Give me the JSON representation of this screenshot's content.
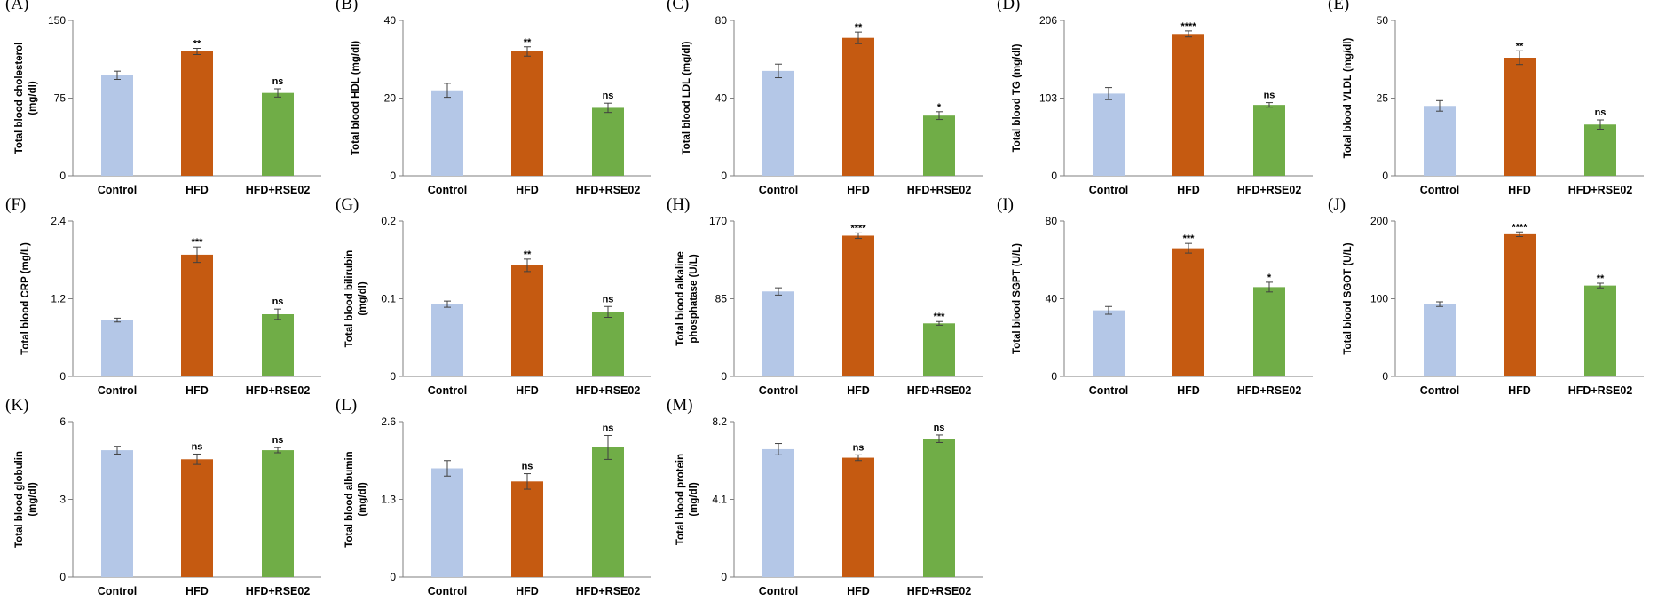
{
  "colors": {
    "control": "#b4c7e7",
    "hfd": "#c55a11",
    "rse02": "#70ad47",
    "axis": "#7f7f7f",
    "errorbar": "#404040"
  },
  "chart_data": [
    {
      "panel": "(A)",
      "type": "bar",
      "categories": [
        "Control",
        "HFD",
        "HFD+RSE02"
      ],
      "values": [
        97,
        120,
        80
      ],
      "errors": [
        4,
        3,
        4
      ],
      "significance": [
        "",
        "**",
        "ns"
      ],
      "ylabel": [
        "Total blood cholesterol",
        "(mg/dl)"
      ],
      "yticks": [
        "0",
        "75",
        "150"
      ],
      "ylim": [
        0,
        150
      ]
    },
    {
      "panel": "(B)",
      "type": "bar",
      "categories": [
        "Control",
        "HFD",
        "HFD+RSE02"
      ],
      "values": [
        22,
        32,
        17.5
      ],
      "errors": [
        1.8,
        1.2,
        1.2
      ],
      "significance": [
        "",
        "**",
        "ns"
      ],
      "ylabel": [
        "Total blood HDL (mg/dl)"
      ],
      "yticks": [
        "0",
        "20",
        "40"
      ],
      "ylim": [
        0,
        40
      ]
    },
    {
      "panel": "(C)",
      "type": "bar",
      "categories": [
        "Control",
        "HFD",
        "HFD+RSE02"
      ],
      "values": [
        54,
        71,
        31
      ],
      "errors": [
        3.5,
        3,
        2
      ],
      "significance": [
        "",
        "**",
        "*"
      ],
      "ylabel": [
        "Total blood LDL (mg/dl)"
      ],
      "yticks": [
        "0",
        "40",
        "80"
      ],
      "ylim": [
        0,
        80
      ]
    },
    {
      "panel": "(D)",
      "type": "bar",
      "categories": [
        "Control",
        "HFD",
        "HFD+RSE02"
      ],
      "values": [
        109,
        188,
        94
      ],
      "errors": [
        8,
        4,
        3
      ],
      "significance": [
        "",
        "****",
        "ns"
      ],
      "ylabel": [
        "Total blood TG (mg/dl)"
      ],
      "yticks": [
        "0",
        "103",
        "206"
      ],
      "ylim": [
        0,
        206
      ]
    },
    {
      "panel": "(E)",
      "type": "bar",
      "categories": [
        "Control",
        "HFD",
        "HFD+RSE02"
      ],
      "values": [
        22.5,
        38,
        16.5
      ],
      "errors": [
        1.7,
        2.2,
        1.5
      ],
      "significance": [
        "",
        "**",
        "ns"
      ],
      "ylabel": [
        "Total blood VLDL (mg/dl)"
      ],
      "yticks": [
        "0",
        "25",
        "50"
      ],
      "ylim": [
        0,
        50
      ]
    },
    {
      "panel": "(F)",
      "type": "bar",
      "categories": [
        "Control",
        "HFD",
        "HFD+RSE02"
      ],
      "values": [
        0.87,
        1.88,
        0.96
      ],
      "errors": [
        0.03,
        0.12,
        0.08
      ],
      "significance": [
        "",
        "***",
        "ns"
      ],
      "ylabel": [
        "Total blood CRP (mg/L)"
      ],
      "yticks": [
        "0",
        "1.2",
        "2.4"
      ],
      "ylim": [
        0,
        2.4
      ]
    },
    {
      "panel": "(G)",
      "type": "bar",
      "categories": [
        "Control",
        "HFD",
        "HFD+RSE02"
      ],
      "values": [
        0.093,
        0.143,
        0.083
      ],
      "errors": [
        0.004,
        0.008,
        0.007
      ],
      "significance": [
        "",
        "**",
        "ns"
      ],
      "ylabel": [
        "Total blood bilirubin",
        "(mg/dl)"
      ],
      "yticks": [
        "0",
        "0.1",
        "0.2"
      ],
      "ylim": [
        0,
        0.2
      ]
    },
    {
      "panel": "(H)",
      "type": "bar",
      "categories": [
        "Control",
        "HFD",
        "HFD+RSE02"
      ],
      "values": [
        93,
        154,
        58
      ],
      "errors": [
        4,
        3,
        2
      ],
      "significance": [
        "",
        "****",
        "***"
      ],
      "ylabel": [
        "Total blood alkaline",
        "phosphatase (U/L)"
      ],
      "yticks": [
        "0",
        "85",
        "170"
      ],
      "ylim": [
        0,
        170
      ]
    },
    {
      "panel": "(I)",
      "type": "bar",
      "categories": [
        "Control",
        "HFD",
        "HFD+RSE02"
      ],
      "values": [
        34,
        66,
        46
      ],
      "errors": [
        2,
        2.5,
        2.5
      ],
      "significance": [
        "",
        "***",
        "*"
      ],
      "ylabel": [
        "Total blood SGPT (U/L)"
      ],
      "yticks": [
        "0",
        "40",
        "80"
      ],
      "ylim": [
        0,
        80
      ]
    },
    {
      "panel": "(J)",
      "type": "bar",
      "categories": [
        "Control",
        "HFD",
        "HFD+RSE02"
      ],
      "values": [
        93,
        183,
        117
      ],
      "errors": [
        3,
        3,
        3
      ],
      "significance": [
        "",
        "****",
        "**"
      ],
      "ylabel": [
        "Total blood SGOT (U/L)"
      ],
      "yticks": [
        "0",
        "100",
        "200"
      ],
      "ylim": [
        0,
        200
      ]
    },
    {
      "panel": "(K)",
      "type": "bar",
      "categories": [
        "Control",
        "HFD",
        "HFD+RSE02"
      ],
      "values": [
        4.9,
        4.55,
        4.9
      ],
      "errors": [
        0.15,
        0.2,
        0.1
      ],
      "significance": [
        "",
        "ns",
        "ns"
      ],
      "ylabel": [
        "Total blood globulin",
        "(mg/dl)"
      ],
      "yticks": [
        "0",
        "3",
        "6"
      ],
      "ylim": [
        0,
        6
      ]
    },
    {
      "panel": "(L)",
      "type": "bar",
      "categories": [
        "Control",
        "HFD",
        "HFD+RSE02"
      ],
      "values": [
        1.82,
        1.6,
        2.17
      ],
      "errors": [
        0.13,
        0.13,
        0.2
      ],
      "significance": [
        "",
        "ns",
        "ns"
      ],
      "ylabel": [
        "Total blood albumin",
        "(mg/dl)"
      ],
      "yticks": [
        "0",
        "1.3",
        "2.6"
      ],
      "ylim": [
        0,
        2.6
      ]
    },
    {
      "panel": "(M)",
      "type": "bar",
      "categories": [
        "Control",
        "HFD",
        "HFD+RSE02"
      ],
      "values": [
        6.75,
        6.3,
        7.3
      ],
      "errors": [
        0.3,
        0.15,
        0.2
      ],
      "significance": [
        "",
        "ns",
        "ns"
      ],
      "ylabel": [
        "Total blood protein",
        "(mg/dl)"
      ],
      "yticks": [
        "0",
        "4.1",
        "8.2"
      ],
      "ylim": [
        0,
        8.2
      ]
    }
  ]
}
